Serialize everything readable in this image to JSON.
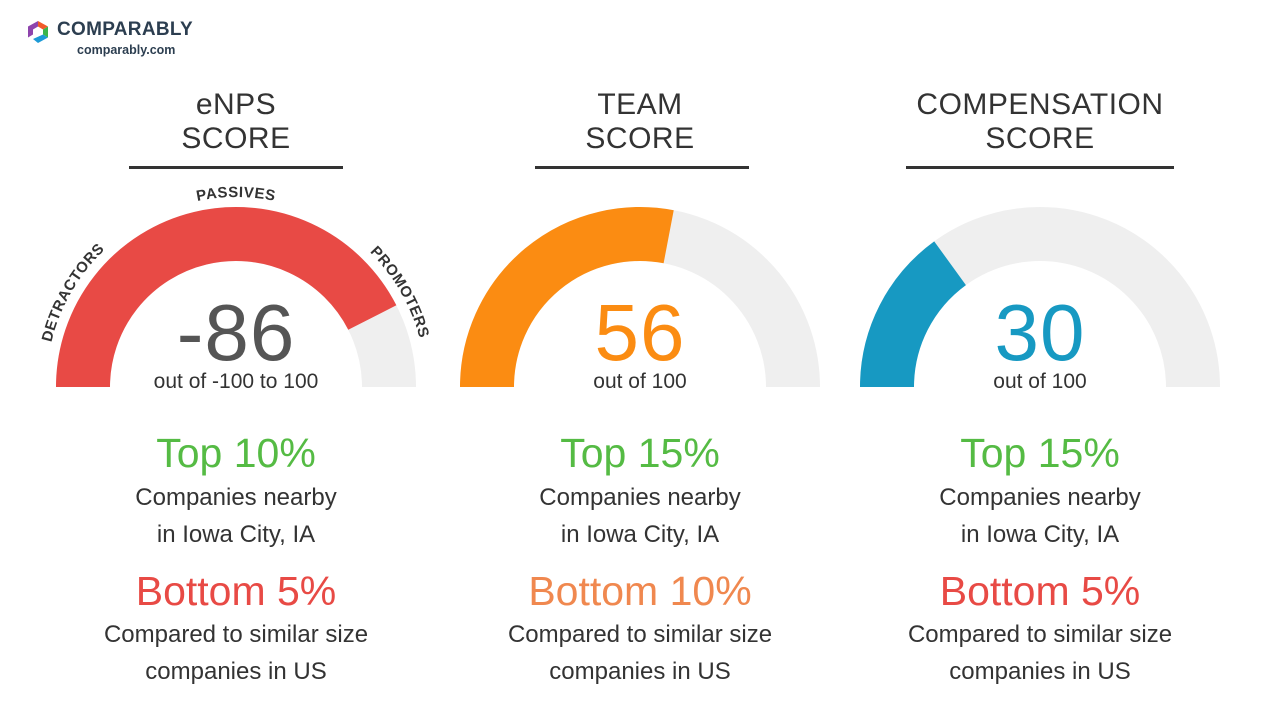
{
  "brand": {
    "name": "COMPARABLY",
    "url": "comparably.com",
    "logo_colors": [
      "#f15a29",
      "#39b54a",
      "#1c9ad6",
      "#8e44ad"
    ]
  },
  "panels": [
    {
      "title_line1": "eNPS",
      "title_line2": "SCORE",
      "score": "-86",
      "range_text": "out of -100 to 100",
      "top_text": "Top 10%",
      "nearby_line1": "Companies nearby",
      "nearby_line2": "in Iowa City, IA",
      "bottom_text": "Bottom 5%",
      "compare_line1": "Compared to similar size",
      "compare_line2": "companies in US",
      "accent_color": "#e84a45",
      "bottom_color": "#e84a45",
      "segment_labels": {
        "left": "DETRACTORS",
        "top": "PASSIVES",
        "right": "PROMOTERS"
      }
    },
    {
      "title_line1": "TEAM",
      "title_line2": "SCORE",
      "score": "56",
      "range_text": "out of 100",
      "top_text": "Top 15%",
      "nearby_line1": "Companies nearby",
      "nearby_line2": "in Iowa City, IA",
      "bottom_text": "Bottom 10%",
      "compare_line1": "Compared to similar size",
      "compare_line2": "companies in US",
      "accent_color": "#fb8c12",
      "bottom_color": "#f0884f"
    },
    {
      "title_line1": "COMPENSATION",
      "title_line2": "SCORE",
      "score": "30",
      "range_text": "out of 100",
      "top_text": "Top 15%",
      "nearby_line1": "Companies nearby",
      "nearby_line2": "in Iowa City, IA",
      "bottom_text": "Bottom 5%",
      "compare_line1": "Compared to similar size",
      "compare_line2": "companies in US",
      "accent_color": "#1799c2",
      "bottom_color": "#e84a45"
    }
  ],
  "chart_data": [
    {
      "type": "gauge",
      "title": "eNPS SCORE",
      "value": -86,
      "min": -100,
      "max": 100,
      "fill_fraction": 0.85,
      "fill_color": "#e84a45",
      "track_color": "#efefef"
    },
    {
      "type": "gauge",
      "title": "TEAM SCORE",
      "value": 56,
      "min": 0,
      "max": 100,
      "fill_fraction": 0.56,
      "fill_color": "#fb8c12",
      "track_color": "#efefef"
    },
    {
      "type": "gauge",
      "title": "COMPENSATION SCORE",
      "value": 30,
      "min": 0,
      "max": 100,
      "fill_fraction": 0.3,
      "fill_color": "#1799c2",
      "track_color": "#efefef"
    }
  ]
}
